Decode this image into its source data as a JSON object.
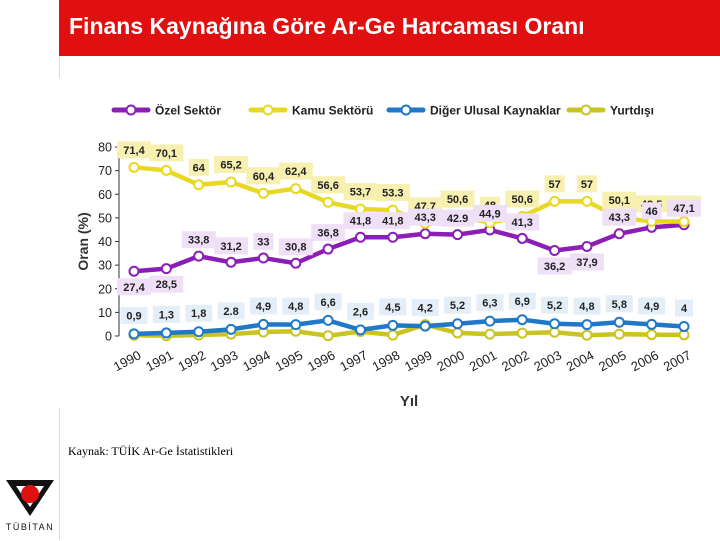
{
  "slide": {
    "title": "Finans Kaynağına Göre Ar-Ge Harcaması Oranı",
    "source": "Kaynak: TÜİK Ar-Ge İstatistikleri",
    "logo_text": "TÜBİTAN",
    "accent_color": "#e01010"
  },
  "chart_data": {
    "type": "line",
    "title": "",
    "xlabel": "Yıl",
    "ylabel": "Oran (%)",
    "ylim": [
      0,
      80
    ],
    "yticks": [
      0,
      10,
      20,
      30,
      40,
      50,
      60,
      70,
      80
    ],
    "grid": false,
    "legend_position": "top",
    "x": [
      "1990",
      "1991",
      "1992",
      "1993",
      "1994",
      "1995",
      "1996",
      "1997",
      "1998",
      "1999",
      "2000",
      "2001",
      "2002",
      "2003",
      "2004",
      "2005",
      "2006",
      "2007"
    ],
    "series": [
      {
        "name": "Özel Sektör",
        "color": "#8b1fb5",
        "values": [
          27.4,
          28.5,
          33.8,
          31.2,
          33,
          30.8,
          36.8,
          41.8,
          41.8,
          43.3,
          42.9,
          44.9,
          41.3,
          36.2,
          37.9,
          43.3,
          46,
          47.1
        ],
        "labels": [
          "27,4",
          "28,5",
          "33,8",
          "31,2",
          "33",
          "30,8",
          "36,8",
          "41,8",
          "41,8",
          "43,3",
          "42.9",
          "44,9",
          "41,3",
          "36,2",
          "37,9",
          "43,3",
          "46",
          "47,1"
        ]
      },
      {
        "name": "Kamu Sektörü",
        "color": "#e8d821",
        "values": [
          71.4,
          70.1,
          64,
          65.2,
          60.4,
          62.4,
          56.6,
          53.7,
          53.3,
          47.7,
          50.6,
          48,
          50.6,
          57,
          57,
          50.1,
          48.5,
          48.4
        ],
        "labels": [
          "71,4",
          "70,1",
          "64",
          "65,2",
          "60,4",
          "62,4",
          "56,6",
          "53,7",
          "53.3",
          "47,7",
          "50,6",
          "48",
          "50,6",
          "57",
          "57",
          "50,1",
          "48,5",
          "48,4"
        ]
      },
      {
        "name": "Diğer Ulusal Kaynaklar",
        "color": "#1f78c8",
        "values": [
          0.9,
          1.3,
          1.8,
          2.8,
          4.9,
          4.8,
          6.6,
          2.6,
          4.5,
          4.2,
          5.2,
          6.3,
          6.9,
          5.2,
          4.8,
          5.8,
          4.9,
          4
        ],
        "labels": [
          "0,9",
          "1,3",
          "1,8",
          "2.8",
          "4,9",
          "4,8",
          "6,6",
          "2,6",
          "4,5",
          "4,2",
          "5,2",
          "6,3",
          "6,9",
          "5,2",
          "4,8",
          "5,8",
          "4,9",
          "4"
        ]
      },
      {
        "name": "Yurtdışı",
        "color": "#c9c422",
        "values": [
          0.3,
          0.1,
          0.4,
          0.8,
          1.7,
          2,
          0.1,
          1.9,
          0.4,
          4.8,
          1.3,
          0.8,
          1.2,
          1.6,
          0.3,
          0.8,
          0.6,
          0.5
        ],
        "labels": []
      }
    ]
  }
}
